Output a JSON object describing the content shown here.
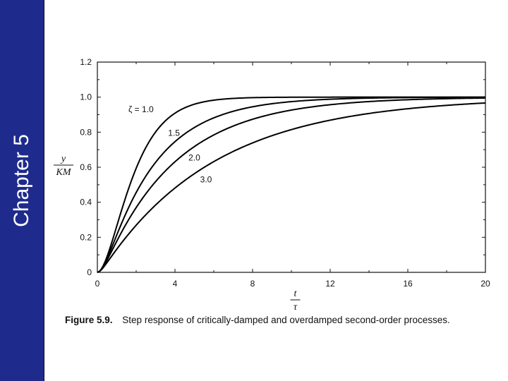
{
  "slide": {
    "side_label": "Chapter 5",
    "side_color": "#1e2a8c"
  },
  "caption": {
    "label": "Figure 5.9.",
    "text": "Step response of critically-damped and overdamped second-order processes."
  },
  "chart_data": {
    "type": "line",
    "title": "",
    "xlabel_num": "t",
    "xlabel_den": "τ",
    "ylabel_num": "y",
    "ylabel_den": "KM",
    "xlim": [
      0,
      20
    ],
    "ylim": [
      0,
      1.2
    ],
    "xticks": [
      0,
      4,
      8,
      12,
      16,
      20
    ],
    "xtick_labels": [
      "0",
      "4",
      "8",
      "12",
      "16",
      "20"
    ],
    "yticks": [
      0,
      0.2,
      0.4,
      0.6,
      0.8,
      1.0,
      1.2
    ],
    "ytick_labels": [
      "0",
      "0.2",
      "0.4",
      "0.6",
      "0.8",
      "1.0",
      "1.2"
    ],
    "grid": false,
    "line_color": "#000000",
    "series": [
      {
        "name": "ζ = 1.0",
        "zeta": 1.0,
        "x": [
          0,
          1,
          2,
          3,
          4,
          5,
          6,
          8,
          10,
          12,
          14,
          16,
          18,
          20
        ],
        "values": [
          0,
          0.26,
          0.59,
          0.8,
          0.91,
          0.96,
          0.98,
          0.99,
          1.0,
          1.0,
          1.0,
          1.0,
          1.0,
          1.0
        ]
      },
      {
        "name": "1.5",
        "zeta": 1.5,
        "x": [
          0,
          1,
          2,
          3,
          4,
          5,
          6,
          8,
          10,
          12,
          14,
          16,
          18,
          20
        ],
        "values": [
          0,
          0.21,
          0.44,
          0.6,
          0.72,
          0.8,
          0.86,
          0.93,
          0.96,
          0.98,
          0.99,
          0.995,
          0.997,
          0.999
        ]
      },
      {
        "name": "2.0",
        "zeta": 2.0,
        "x": [
          0,
          1,
          2,
          3,
          4,
          5,
          6,
          8,
          10,
          12,
          14,
          16,
          18,
          20
        ],
        "values": [
          0,
          0.17,
          0.36,
          0.5,
          0.61,
          0.7,
          0.76,
          0.86,
          0.91,
          0.95,
          0.97,
          0.98,
          0.99,
          0.99
        ]
      },
      {
        "name": "3.0",
        "zeta": 3.0,
        "x": [
          0,
          1,
          2,
          3,
          4,
          5,
          6,
          8,
          10,
          12,
          14,
          16,
          18,
          20
        ],
        "values": [
          0,
          0.12,
          0.26,
          0.37,
          0.46,
          0.54,
          0.6,
          0.71,
          0.79,
          0.85,
          0.89,
          0.92,
          0.94,
          0.96
        ]
      }
    ]
  }
}
